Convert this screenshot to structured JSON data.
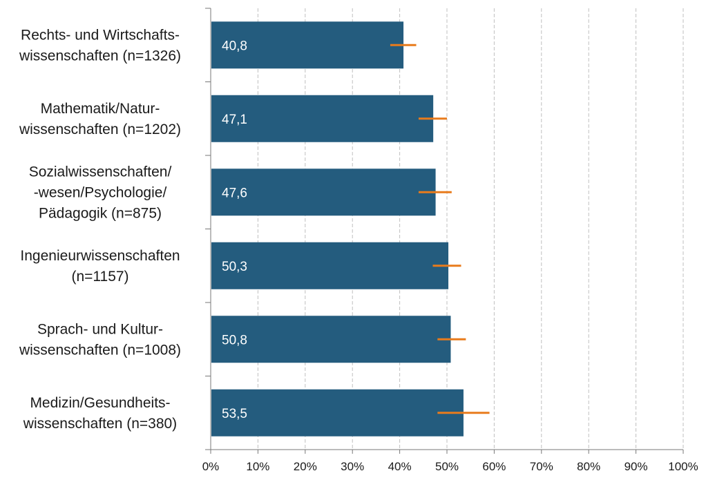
{
  "chart_data": {
    "type": "bar",
    "orientation": "horizontal",
    "categories": [
      [
        "Rechts- und Wirtschafts-",
        "wissenschaften (n=1326)"
      ],
      [
        "Mathematik/Natur-",
        "wissenschaften (n=1202)"
      ],
      [
        "Sozialwissenschaften/",
        "-wesen/Psychologie/",
        "Pädagogik (n=875)"
      ],
      [
        "Ingenieurwissenschaften",
        "(n=1157)"
      ],
      [
        "Sprach- und Kultur-",
        "wissenschaften (n=1008)"
      ],
      [
        "Medizin/Gesundheits-",
        "wissenschaften (n=380)"
      ]
    ],
    "values": [
      40.8,
      47.1,
      47.6,
      50.3,
      50.8,
      53.5
    ],
    "value_labels": [
      "40,8",
      "47,1",
      "47,6",
      "50,3",
      "50,8",
      "53,5"
    ],
    "error_bars": [
      [
        38.0,
        43.5
      ],
      [
        44.0,
        50.0
      ],
      [
        44.0,
        51.0
      ],
      [
        47.0,
        53.0
      ],
      [
        48.0,
        54.0
      ],
      [
        48.0,
        59.0
      ]
    ],
    "x_ticks": [
      "0%",
      "10%",
      "20%",
      "30%",
      "40%",
      "50%",
      "60%",
      "70%",
      "80%",
      "90%",
      "100%"
    ],
    "xlim": [
      0,
      100
    ],
    "grid": true,
    "colors": {
      "bar": "#245C7E",
      "error": "#E87B1C",
      "grid": "#bfbfbf",
      "axis": "#777777"
    },
    "title": "",
    "xlabel": "",
    "ylabel": ""
  }
}
